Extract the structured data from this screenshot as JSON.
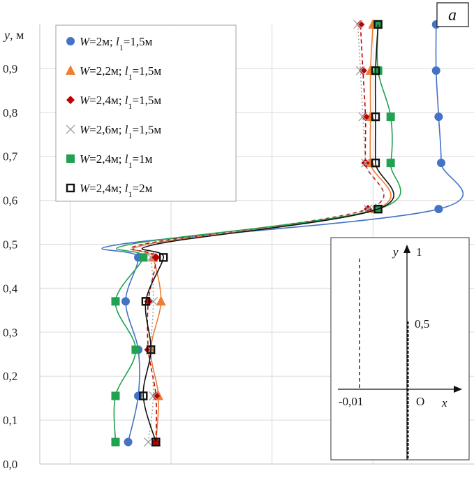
{
  "chart_data": {
    "type": "line",
    "title": "",
    "panel_label": "a",
    "ylabel": "y, м",
    "xlabel": "",
    "ylim": [
      0,
      1.0
    ],
    "xlim": [
      -0.0156,
      0.0016
    ],
    "yticks": [
      "0,0",
      "0,1",
      "0,2",
      "0,3",
      "0,4",
      "0,5",
      "0,6",
      "0,7",
      "0,8",
      "0,9"
    ],
    "ytick_values": [
      0,
      0.1,
      0.2,
      0.3,
      0.4,
      0.5,
      0.6,
      0.7,
      0.8,
      0.9
    ],
    "xgrid_values": [
      -0.0144,
      -0.0104,
      -0.0064,
      -0.0024
    ],
    "legend_position": "top-left",
    "series": [
      {
        "name": "W=2м; l1=1,5м",
        "label_parts": {
          "W": "2м",
          "l": "1,5м"
        },
        "color": "#4472c4",
        "marker": "circle",
        "dash": "",
        "x": [
          -0.0121,
          -0.0117,
          -0.0117,
          -0.0122,
          -0.0117,
          -0.0124,
          0.0002,
          0.0003,
          0.0002,
          0.0001,
          0.0001
        ],
        "y": [
          0.05,
          0.155,
          0.26,
          0.37,
          0.47,
          0.5,
          0.58,
          0.685,
          0.79,
          0.895,
          1.0
        ]
      },
      {
        "name": "W=2,2м; l1=1,5м",
        "label_parts": {
          "W": "2,2м",
          "l": "1,5м"
        },
        "color": "#ed7d31",
        "marker": "triangle",
        "dash": "",
        "x": [
          -0.011,
          -0.0109,
          -0.0112,
          -0.0108,
          -0.0111,
          -0.0113,
          -0.0023,
          -0.0025,
          -0.0025,
          -0.0025,
          -0.0024
        ],
        "y": [
          0.05,
          0.155,
          0.26,
          0.37,
          0.47,
          0.5,
          0.58,
          0.685,
          0.79,
          0.895,
          1.0
        ]
      },
      {
        "name": "W=2,4м; l1=1,5м",
        "label_parts": {
          "W": "2,4м",
          "l": "1,5м"
        },
        "color": "#c00000",
        "marker": "diamond",
        "dash": "6,4",
        "x": [
          -0.011,
          -0.011,
          -0.0113,
          -0.0113,
          -0.011,
          -0.0115,
          -0.0026,
          -0.0027,
          -0.0027,
          -0.0028,
          -0.0029
        ],
        "y": [
          0.05,
          0.155,
          0.26,
          0.37,
          0.47,
          0.5,
          0.58,
          0.685,
          0.79,
          0.895,
          1.0
        ]
      },
      {
        "name": "W=2,6м; l1=1,5м",
        "label_parts": {
          "W": "2,6м",
          "l": "1,5м"
        },
        "color": "#a5a5a5",
        "marker": "cross",
        "dash": "2,3",
        "x": [
          -0.0113,
          -0.0111,
          -0.0112,
          -0.0111,
          -0.0112,
          -0.0114,
          -0.0026,
          -0.0027,
          -0.0028,
          -0.0029,
          -0.003
        ],
        "y": [
          0.05,
          0.155,
          0.26,
          0.37,
          0.47,
          0.5,
          0.58,
          0.685,
          0.79,
          0.895,
          1.0
        ]
      },
      {
        "name": "W=2,4м; l1=1м",
        "label_parts": {
          "W": "2,4м",
          "l": "1м"
        },
        "color": "#21a152",
        "marker": "square",
        "dash": "",
        "x": [
          -0.0126,
          -0.0126,
          -0.0118,
          -0.0126,
          -0.0115,
          -0.012,
          -0.0022,
          -0.0017,
          -0.0017,
          -0.0022,
          -0.0022
        ],
        "y": [
          0.05,
          0.155,
          0.26,
          0.37,
          0.47,
          0.5,
          0.58,
          0.685,
          0.79,
          0.895,
          1.0
        ]
      },
      {
        "name": "W=2,4м; l1=2м",
        "label_parts": {
          "W": "2,4м",
          "l": "2м"
        },
        "color": "#111111",
        "marker": "square-open",
        "dash": "",
        "x": [
          -0.011,
          -0.0115,
          -0.0112,
          -0.0114,
          -0.0107,
          -0.011,
          -0.0022,
          -0.0023,
          -0.0023,
          -0.0023,
          -0.0022
        ],
        "y": [
          0.05,
          0.155,
          0.26,
          0.37,
          0.47,
          0.5,
          0.58,
          0.685,
          0.79,
          0.895,
          1.0
        ]
      }
    ],
    "inset": {
      "y_axis_label": "y",
      "y_top_tick": "1",
      "y_mid_tick": "0,5",
      "x_axis_label": "x",
      "origin_label": "O",
      "x_left_tick": "-0,01"
    }
  }
}
